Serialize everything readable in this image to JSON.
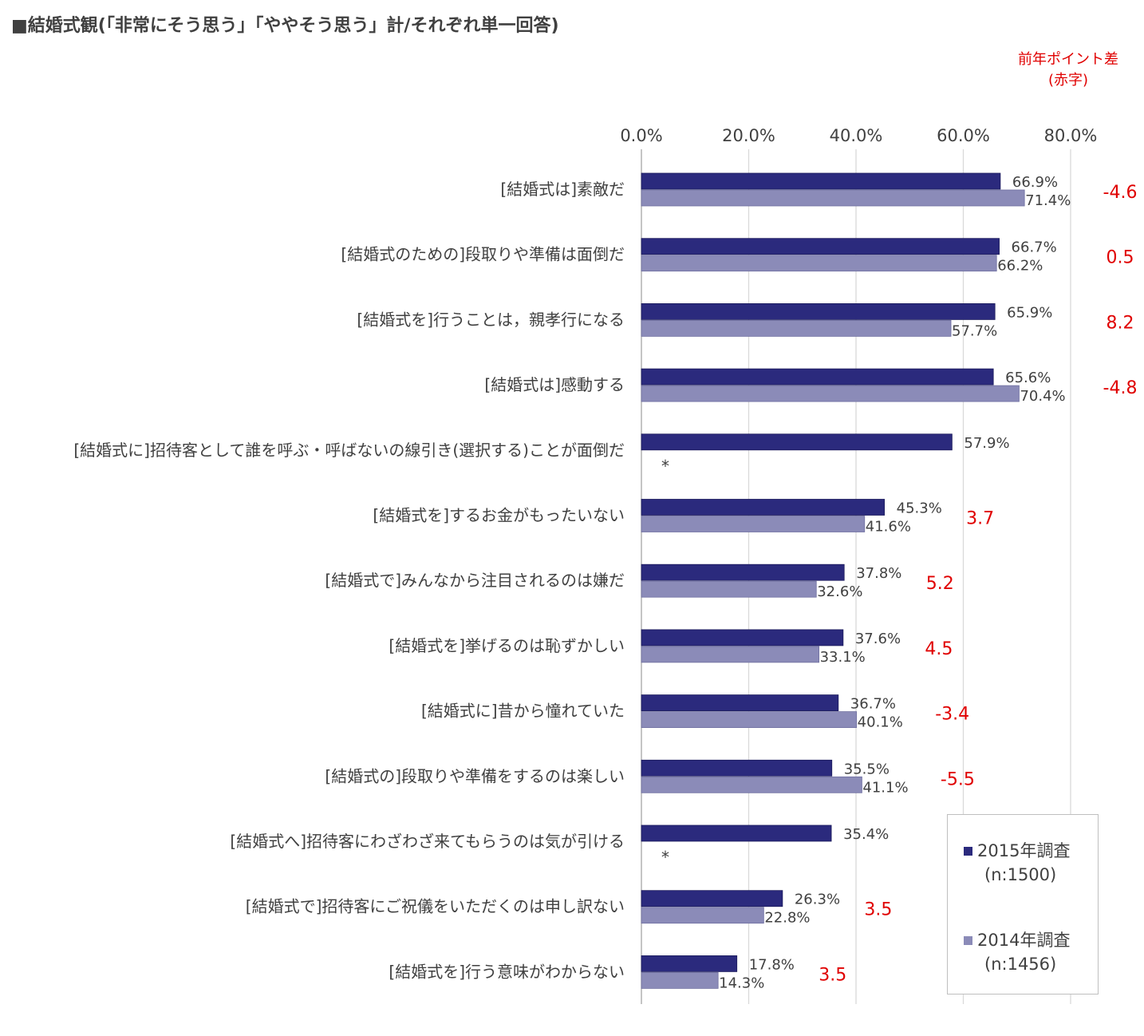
{
  "title": "■結婚式観(「非常にそう思う」「ややそう思う」計/それぞれ単一回答)",
  "diff_header": [
    "前年ポイント差",
    "(赤字)"
  ],
  "colors": {
    "s2015": "#2b2a7d",
    "s2014": "#8b8bb8",
    "diff": "#e00000",
    "grid": "#d9d9d9",
    "text": "#404040"
  },
  "legend": [
    {
      "label": "2015年調査",
      "n": "(n:1500)"
    },
    {
      "label": "2014年調査",
      "n": "(n:1456)"
    }
  ],
  "chart_data": {
    "type": "bar",
    "orientation": "horizontal",
    "xlim": [
      0,
      80
    ],
    "x_ticks": [
      "0.0%",
      "20.0%",
      "40.0%",
      "60.0%",
      "80.0%"
    ],
    "grid": true,
    "legend_position": "bottom-right",
    "categories": [
      "[結婚式は]素敵だ",
      "[結婚式のための]段取りや準備は面倒だ",
      "[結婚式を]行うことは，親孝行になる",
      "[結婚式は]感動する",
      "[結婚式に]招待客として誰を呼ぶ・呼ばないの線引き(選択する)ことが面倒だ",
      "[結婚式を]するお金がもったいない",
      "[結婚式で]みんなから注目されるのは嫌だ",
      "[結婚式を]挙げるのは恥ずかしい",
      "[結婚式に]昔から憧れていた",
      "[結婚式の]段取りや準備をするのは楽しい",
      "[結婚式へ]招待客にわざわざ来てもらうのは気が引ける",
      "[結婚式で]招待客にご祝儀をいただくのは申し訳ない",
      "[結婚式を]行う意味がわからない"
    ],
    "series": [
      {
        "name": "2015年調査",
        "values": [
          66.9,
          66.7,
          65.9,
          65.6,
          57.9,
          45.3,
          37.8,
          37.6,
          36.7,
          35.5,
          35.4,
          26.3,
          17.8
        ],
        "labels": [
          "66.9%",
          "66.7%",
          "65.9%",
          "65.6%",
          "57.9%",
          "45.3%",
          "37.8%",
          "37.6%",
          "36.7%",
          "35.5%",
          "35.4%",
          "26.3%",
          "17.8%"
        ]
      },
      {
        "name": "2014年調査",
        "values": [
          71.4,
          66.2,
          57.7,
          70.4,
          null,
          41.6,
          32.6,
          33.1,
          40.1,
          41.1,
          null,
          22.8,
          14.3
        ],
        "labels": [
          "71.4%",
          "66.2%",
          "57.7%",
          "70.4%",
          "*",
          "41.6%",
          "32.6%",
          "33.1%",
          "40.1%",
          "41.1%",
          "*",
          "22.8%",
          "14.3%"
        ]
      }
    ],
    "point_diff": [
      "-4.6",
      "0.5",
      "8.2",
      "-4.8",
      "",
      "3.7",
      "5.2",
      "4.5",
      "-3.4",
      "-5.5",
      "",
      "3.5",
      "3.5"
    ]
  }
}
